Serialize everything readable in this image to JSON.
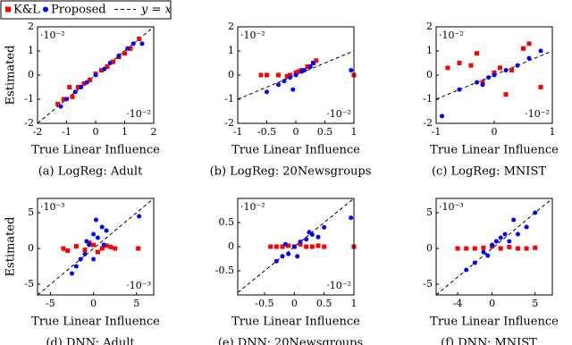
{
  "legend": {
    "reference_label": "y = x"
  },
  "chart_data": [
    {
      "type": "scatter",
      "caption": "(a) LogReg: Adult",
      "xlabel": "True Linear Influence",
      "ylabel": "Estimated",
      "y_exponent": "·10⁻²",
      "x_exponent": "·10⁻²",
      "xlim": [
        -2,
        2
      ],
      "ylim": [
        -2,
        2
      ],
      "xticks": [
        -2,
        -1,
        0,
        1,
        2
      ],
      "yticks": [
        -2,
        -1,
        0,
        1,
        2
      ],
      "diagonal": true,
      "series": [
        {
          "name": "K&L",
          "color": "#ff0000",
          "marker": "square",
          "x": [
            -1.3,
            -1.1,
            -0.8,
            -0.6,
            -0.4,
            -0.2,
            0,
            0.2,
            0.4,
            0.6,
            0.8,
            1,
            1.2,
            1.5,
            -0.9
          ],
          "y": [
            -1.2,
            -1.0,
            -0.9,
            -0.5,
            -0.35,
            -0.2,
            0.05,
            0.2,
            0.35,
            0.55,
            0.75,
            0.9,
            1.1,
            1.5,
            -0.5
          ]
        },
        {
          "name": "Proposed",
          "color": "#0000ff",
          "marker": "circle",
          "x": [
            -1.2,
            -1,
            -0.7,
            -0.5,
            -0.3,
            0,
            0.3,
            0.5,
            0.8,
            1.1,
            1.3,
            1.6
          ],
          "y": [
            -1.3,
            -1,
            -0.7,
            -0.5,
            -0.3,
            0,
            0.25,
            0.5,
            0.8,
            1.1,
            1.3,
            1.3
          ]
        }
      ]
    },
    {
      "type": "scatter",
      "caption": "(b) LogReg: 20Newsgroups",
      "xlabel": "True Linear Influence",
      "y_exponent": "·10⁻²",
      "x_exponent": "·10⁻²",
      "xlim": [
        -1,
        1
      ],
      "ylim": [
        -2,
        2
      ],
      "xticks": [
        -1,
        -0.5,
        0,
        0.5,
        1
      ],
      "yticks": [
        -2,
        -1,
        0,
        1,
        2
      ],
      "diagonal": true,
      "series": [
        {
          "color": "#ff0000",
          "marker": "square",
          "x": [
            -0.5,
            -0.3,
            -0.15,
            0,
            0.1,
            0.2,
            0.3,
            0.35,
            -0.1,
            0.05,
            1.0,
            -0.6
          ],
          "y": [
            0,
            0,
            -0.05,
            0.1,
            0.2,
            0.35,
            0.5,
            0.6,
            0,
            0.15,
            0,
            0
          ]
        },
        {
          "color": "#0000ff",
          "marker": "circle",
          "x": [
            -0.5,
            -0.3,
            -0.2,
            -0.1,
            0,
            0.1,
            0.15,
            0.25,
            0.3,
            -0.05,
            0.95
          ],
          "y": [
            -0.7,
            -0.4,
            -0.25,
            -0.1,
            0,
            0.15,
            0.2,
            0.35,
            0.5,
            -0.6,
            0.2
          ]
        }
      ]
    },
    {
      "type": "scatter",
      "caption": "(c) LogReg: MNIST",
      "xlabel": "True Linear Influence",
      "y_exponent": "·10⁻²",
      "x_exponent": "·10⁻²",
      "xlim": [
        -1,
        1
      ],
      "ylim": [
        -2,
        2
      ],
      "xticks": [
        -1,
        0,
        1
      ],
      "yticks": [
        -2,
        -1,
        0,
        1,
        2
      ],
      "diagonal": true,
      "series": [
        {
          "color": "#ff0000",
          "marker": "square",
          "x": [
            -0.6,
            -0.4,
            -0.2,
            0,
            0.1,
            0.3,
            0.5,
            0.8,
            -0.8,
            0.6,
            0.2,
            -0.3
          ],
          "y": [
            0.5,
            0.4,
            -0.3,
            0.1,
            0.3,
            0.2,
            1.1,
            -0.5,
            0.3,
            1.3,
            -0.8,
            0.9
          ]
        },
        {
          "color": "#0000ff",
          "marker": "circle",
          "x": [
            -0.9,
            -0.6,
            -0.3,
            -0.1,
            0,
            0.2,
            0.4,
            0.6,
            0.8,
            -0.2
          ],
          "y": [
            -1.7,
            -0.6,
            -0.3,
            -0.1,
            0,
            0.2,
            0.4,
            0.7,
            1.0,
            -0.4
          ]
        }
      ]
    },
    {
      "type": "scatter",
      "caption": "(d) DNN: Adult",
      "xlabel": "True Linear Influence",
      "ylabel": "Estimated",
      "y_exponent": "·10⁻³",
      "x_exponent": "·10⁻³",
      "xlim": [
        -6.5,
        7
      ],
      "ylim": [
        -6.5,
        7
      ],
      "xticks": [
        -5,
        0,
        5
      ],
      "yticks": [
        -5,
        0,
        5
      ],
      "diagonal": true,
      "series": [
        {
          "color": "#ff0000",
          "marker": "square",
          "x": [
            -3.5,
            -2,
            -1,
            0,
            1,
            2,
            -3,
            0.5,
            1.5,
            5.2,
            -0.5,
            2.5
          ],
          "y": [
            0,
            0.3,
            -0.2,
            0.5,
            0,
            0.2,
            -0.3,
            -0.5,
            0.4,
            0,
            0.8,
            0
          ]
        },
        {
          "color": "#0000ff",
          "marker": "circle",
          "x": [
            -2,
            -1.5,
            -1,
            -0.5,
            0,
            0.5,
            1,
            1.5,
            -2.5,
            0,
            -0.8,
            5.3,
            0.3,
            1.2
          ],
          "y": [
            -2.5,
            -1.5,
            -0.8,
            0.5,
            2,
            1.5,
            3,
            2.5,
            -3.5,
            -1.5,
            1,
            4.5,
            4,
            0.5
          ]
        }
      ]
    },
    {
      "type": "scatter",
      "caption": "(e) DNN: 20Newsgroups",
      "xlabel": "True Linear Influence",
      "y_exponent": "·10⁻²",
      "x_exponent": "·10⁻²",
      "xlim": [
        -0.95,
        1
      ],
      "ylim": [
        -1,
        1
      ],
      "xticks": [
        -0.5,
        0,
        0.5,
        1
      ],
      "yticks": [
        -0.5,
        0,
        0.5
      ],
      "diagonal": true,
      "series": [
        {
          "color": "#ff0000",
          "marker": "square",
          "x": [
            -0.4,
            -0.3,
            -0.2,
            -0.1,
            0,
            0.1,
            0.2,
            0.3,
            0.4,
            0.5,
            1.0
          ],
          "y": [
            0,
            0,
            0,
            0.02,
            0,
            0.05,
            0,
            0,
            0.02,
            0,
            0
          ]
        },
        {
          "color": "#0000ff",
          "marker": "circle",
          "x": [
            -0.3,
            -0.2,
            -0.1,
            0,
            0.1,
            0.2,
            0.3,
            0.4,
            0.5,
            -0.15,
            0.05,
            0.25,
            0.95
          ],
          "y": [
            -0.3,
            -0.2,
            -0.15,
            0,
            0.1,
            0.15,
            0.25,
            0.2,
            0.4,
            0.05,
            -0.2,
            0.3,
            0.6
          ]
        }
      ]
    },
    {
      "type": "scatter",
      "caption": "(f) DNN: MNIST",
      "xlabel": "True Linear Influence",
      "y_exponent": "·10⁻³",
      "xlim": [
        -6.5,
        7
      ],
      "ylim": [
        -6.5,
        7
      ],
      "xticks": [
        -4,
        0,
        5
      ],
      "yticks": [
        -5,
        0,
        5
      ],
      "diagonal": true,
      "series": [
        {
          "color": "#ff0000",
          "marker": "square",
          "x": [
            -4,
            -3,
            -2,
            -1,
            0,
            1,
            2,
            3,
            4,
            5
          ],
          "y": [
            0,
            0,
            0,
            0.1,
            0.3,
            0,
            0.2,
            0,
            0,
            0.1
          ]
        },
        {
          "color": "#0000ff",
          "marker": "circle",
          "x": [
            -3,
            -2,
            -1,
            0,
            0.5,
            1,
            1.5,
            2,
            3,
            4,
            5,
            -0.5,
            2.5
          ],
          "y": [
            -3,
            -2,
            -0.5,
            0.5,
            1,
            1.5,
            2,
            1,
            2,
            3,
            5,
            -1,
            4
          ]
        }
      ]
    }
  ]
}
